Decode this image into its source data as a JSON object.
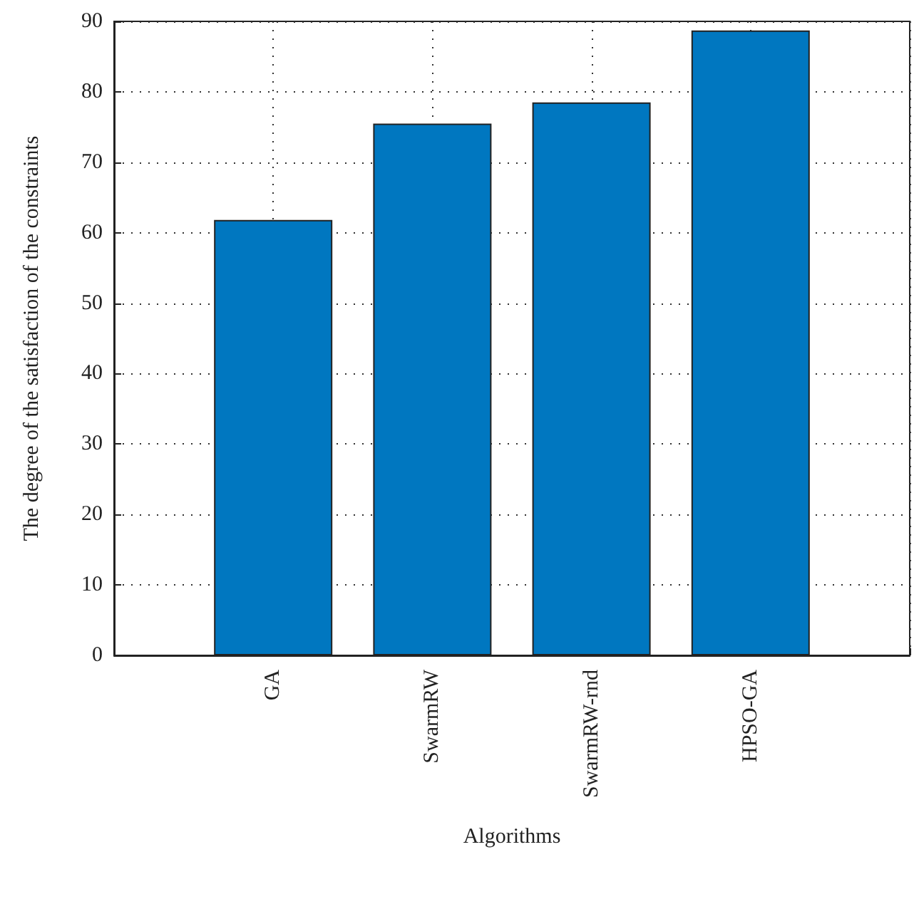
{
  "chart_data": {
    "type": "bar",
    "xlabel": "Algorithms",
    "ylabel": "The degree of the satisfaction of the constraints",
    "categories": [
      "GA",
      "SwarmRW",
      "SwarmRW-rnd",
      "HPSO-GA"
    ],
    "values": [
      61.8,
      75.5,
      78.5,
      88.7
    ],
    "color": "#0077c0",
    "ylim": [
      0,
      90
    ],
    "yticks": [
      0,
      10,
      20,
      30,
      40,
      50,
      60,
      70,
      80,
      90
    ],
    "grid": true
  }
}
